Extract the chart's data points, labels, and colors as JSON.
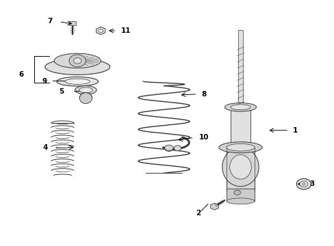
{
  "background_color": "#ffffff",
  "fig_width": 4.89,
  "fig_height": 3.6,
  "dpi": 100,
  "line_color": "#333333",
  "label_fontsize": 7.5
}
